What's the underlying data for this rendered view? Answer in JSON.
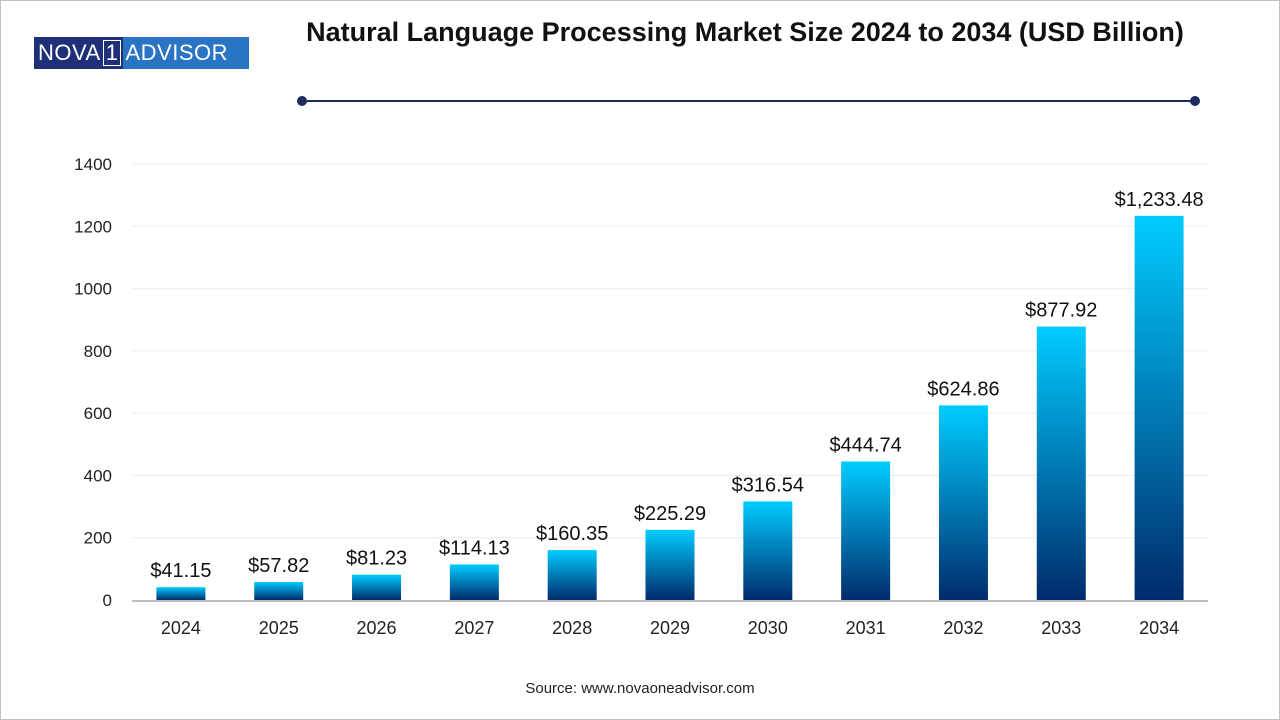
{
  "logo": {
    "left": "NOVA",
    "mid": "1",
    "right": "ADVISOR"
  },
  "header": {
    "title": "Natural Language Processing Market Size 2024 to 2034 (USD Billion)"
  },
  "source": "Source: www.novaoneadvisor.com",
  "colors": {
    "bar_top": "#00CCFF",
    "bar_bottom": "#002B6B",
    "rule": "#1f2a5e"
  },
  "chart_data": {
    "type": "bar",
    "title": "Natural Language Processing Market Size 2024 to 2034 (USD Billion)",
    "xlabel": "",
    "ylabel": "",
    "categories": [
      "2024",
      "2025",
      "2026",
      "2027",
      "2028",
      "2029",
      "2030",
      "2031",
      "2032",
      "2033",
      "2034"
    ],
    "values": [
      41.15,
      57.82,
      81.23,
      114.13,
      160.35,
      225.29,
      316.54,
      444.74,
      624.86,
      877.92,
      1233.48
    ],
    "labels": [
      "$41.15",
      "$57.82",
      "$81.23",
      "$114.13",
      "$160.35",
      "$225.29",
      "$316.54",
      "$444.74",
      "$624.86",
      "$877.92",
      "$1,233.48"
    ],
    "ylim": [
      0,
      1400
    ],
    "yticks": [
      0,
      200,
      400,
      600,
      800,
      1000,
      1200,
      1400
    ],
    "grid": true,
    "legend": "none"
  }
}
